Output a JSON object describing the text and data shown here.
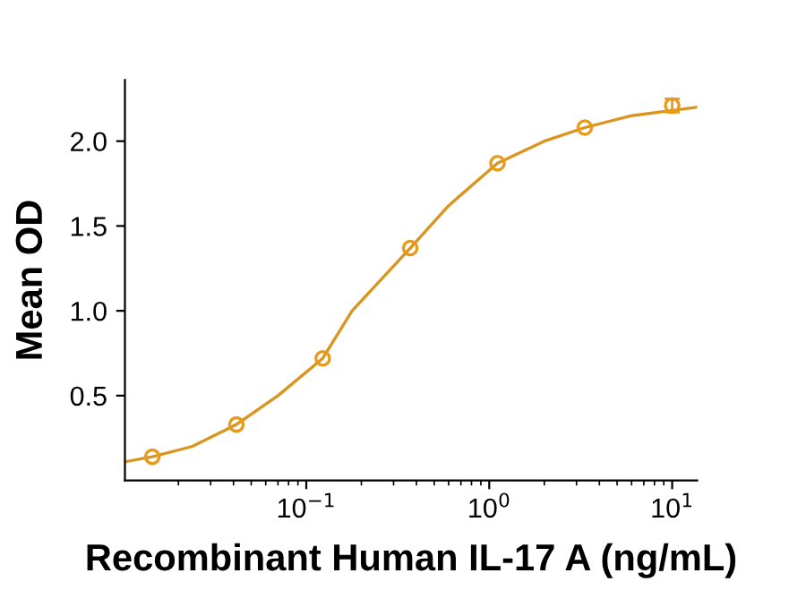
{
  "chart_data": {
    "type": "scatter",
    "xlabel": "Recombinant Human IL-17 A (ng/mL)",
    "ylabel": "Mean OD",
    "log": "x",
    "grid": false,
    "xlim": [
      0.0102,
      13.7
    ],
    "ylim": [
      0,
      2.36
    ],
    "xticks": [
      {
        "value": 0.1,
        "label": "10$^{−1}$"
      },
      {
        "value": 1,
        "label": "10$^{0}$"
      },
      {
        "value": 10,
        "label": "10$^{1}$"
      }
    ],
    "yticks": [
      {
        "value": 0.5,
        "label": "0.5"
      },
      {
        "value": 1,
        "label": "1.0"
      },
      {
        "value": 1.5,
        "label": "1.5"
      },
      {
        "value": 2,
        "label": "2.0"
      }
    ],
    "series": [
      {
        "type": "line",
        "color": "#d9951f",
        "line_style": "solid",
        "marker": "none",
        "x": [
          0.0102,
          0.0144,
          0.0237,
          0.0415,
          0.07,
          0.123,
          0.178,
          0.37,
          0.6,
          1.11,
          2,
          3.33,
          6,
          13.7
        ],
        "values": [
          0.11,
          0.14,
          0.2,
          0.33,
          0.5,
          0.72,
          1.0,
          1.37,
          1.62,
          1.87,
          2.0,
          2.08,
          2.15,
          2.2
        ]
      },
      {
        "color": "#e89a1c",
        "marker": "circle",
        "x": [
          0.0144,
          0.0415,
          0.123,
          0.37,
          1.11,
          3.33,
          10
        ],
        "values": [
          0.14,
          0.33,
          0.72,
          1.37,
          1.87,
          2.08,
          2.21
        ],
        "errors": [
          null,
          null,
          null,
          null,
          null,
          null,
          0.04
        ]
      }
    ]
  }
}
